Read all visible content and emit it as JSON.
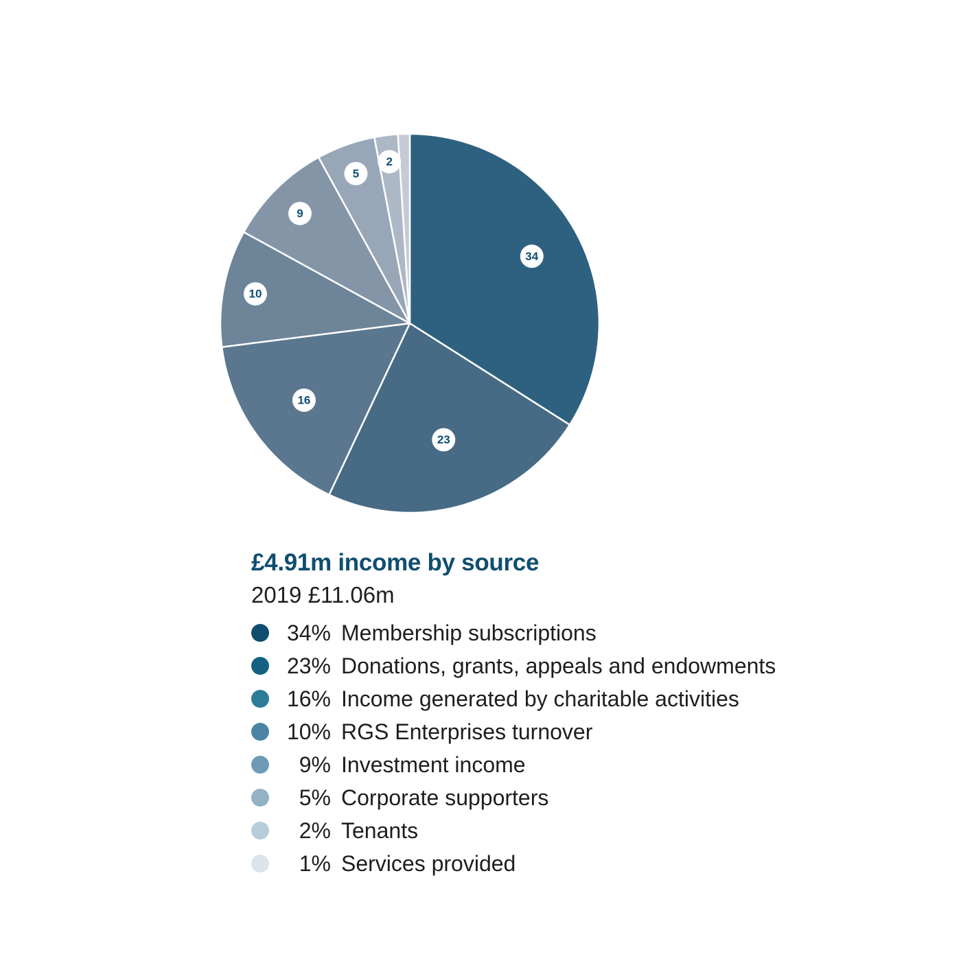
{
  "chart_data": {
    "type": "pie",
    "title": "£4.91m income by source",
    "subtitle": "2019 £11.06m",
    "legend_position": "bottom",
    "slices": [
      {
        "label": "Membership subscriptions",
        "value": 34,
        "pct_label": "34%",
        "slice_color": "#2e617f",
        "legend_color": "#0f4e6f"
      },
      {
        "label": "Donations, grants, appeals and endowments",
        "value": 23,
        "pct_label": "23%",
        "slice_color": "#476b85",
        "legend_color": "#136283"
      },
      {
        "label": "Income generated by charitable activities",
        "value": 16,
        "pct_label": "16%",
        "slice_color": "#5a778f",
        "legend_color": "#2c7b98"
      },
      {
        "label": "RGS Enterprises turnover",
        "value": 10,
        "pct_label": "10%",
        "slice_color": "#6d8499",
        "legend_color": "#4b85a3"
      },
      {
        "label": "Investment income",
        "value": 9,
        "pct_label": "9%",
        "slice_color": "#8495a7",
        "legend_color": "#6f9ab4"
      },
      {
        "label": "Corporate supporters",
        "value": 5,
        "pct_label": "5%",
        "slice_color": "#98a7b8",
        "legend_color": "#93b2c6"
      },
      {
        "label": "Tenants",
        "value": 2,
        "pct_label": "2%",
        "slice_color": "#adb8c6",
        "legend_color": "#b7ccd8"
      },
      {
        "label": "Services provided",
        "value": 1,
        "pct_label": "1%",
        "slice_color": "#c3cbd6",
        "legend_color": "#d9e4ec"
      }
    ]
  }
}
